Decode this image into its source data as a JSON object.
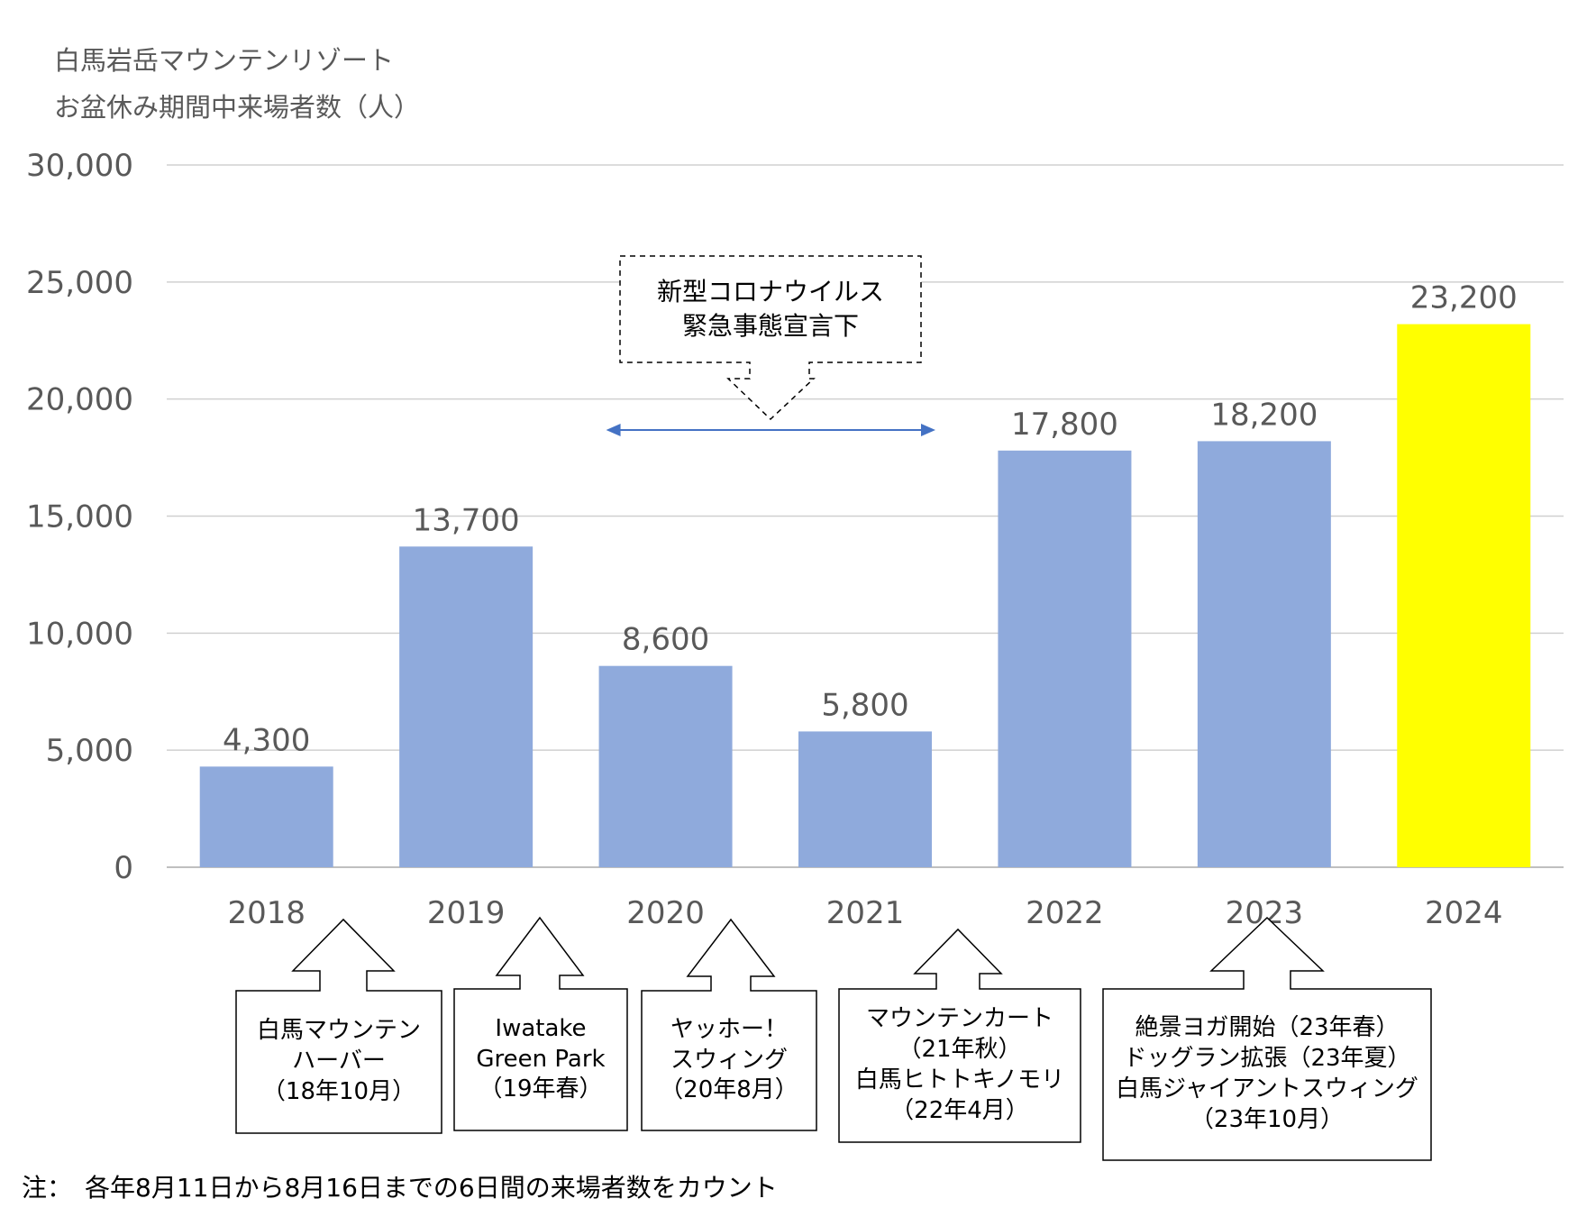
{
  "title": {
    "line1": "白馬岩岳マウンテンリゾート",
    "line2": "お盆休み期間中来場者数（人）"
  },
  "chart_data": {
    "type": "bar",
    "categories": [
      "2018",
      "2019",
      "2020",
      "2021",
      "2022",
      "2023",
      "2024"
    ],
    "values": [
      4300,
      13700,
      8600,
      5800,
      17800,
      18200,
      23200
    ],
    "data_labels": [
      "4,300",
      "13,700",
      "8,600",
      "5,800",
      "17,800",
      "18,200",
      "23,200"
    ],
    "ylim": [
      0,
      30000
    ],
    "yticks": [
      0,
      5000,
      10000,
      15000,
      20000,
      25000,
      30000
    ],
    "ytick_labels": [
      "0",
      "5,000",
      "10,000",
      "15,000",
      "20,000",
      "25,000",
      "30,000"
    ],
    "grid": true,
    "colors": {
      "default": "#8faadc",
      "highlight": "#ffff00",
      "text": "#595959",
      "grid": "#d0d0d0",
      "arrow": "#4472c4"
    },
    "highlight_index": 6,
    "covid_range": {
      "from": "2020",
      "to": "2021"
    }
  },
  "covid_callout": {
    "line1": "新型コロナウイルス",
    "line2": "緊急事態宣言下"
  },
  "annotations": [
    {
      "year": "2018",
      "text": "白馬マウンテン\nハーバー\n（18年10月）"
    },
    {
      "year": "2019",
      "text": "Iwatake\nGreen Park\n（19年春）"
    },
    {
      "year": "2020",
      "text": "ヤッホー！\nスウィング\n（20年8月）"
    },
    {
      "year": "2021",
      "text": "マウンテンカート\n（21年秋）\n白馬ヒトトキノモリ\n（22年4月）"
    },
    {
      "year": "2023",
      "text": "絶景ヨガ開始（23年春）\nドッグラン拡張（23年夏）\n白馬ジャイアントスウィング\n（23年10月）"
    }
  ],
  "note": "注：　各年8月11日から8月16日までの6日間の来場者数をカウント"
}
